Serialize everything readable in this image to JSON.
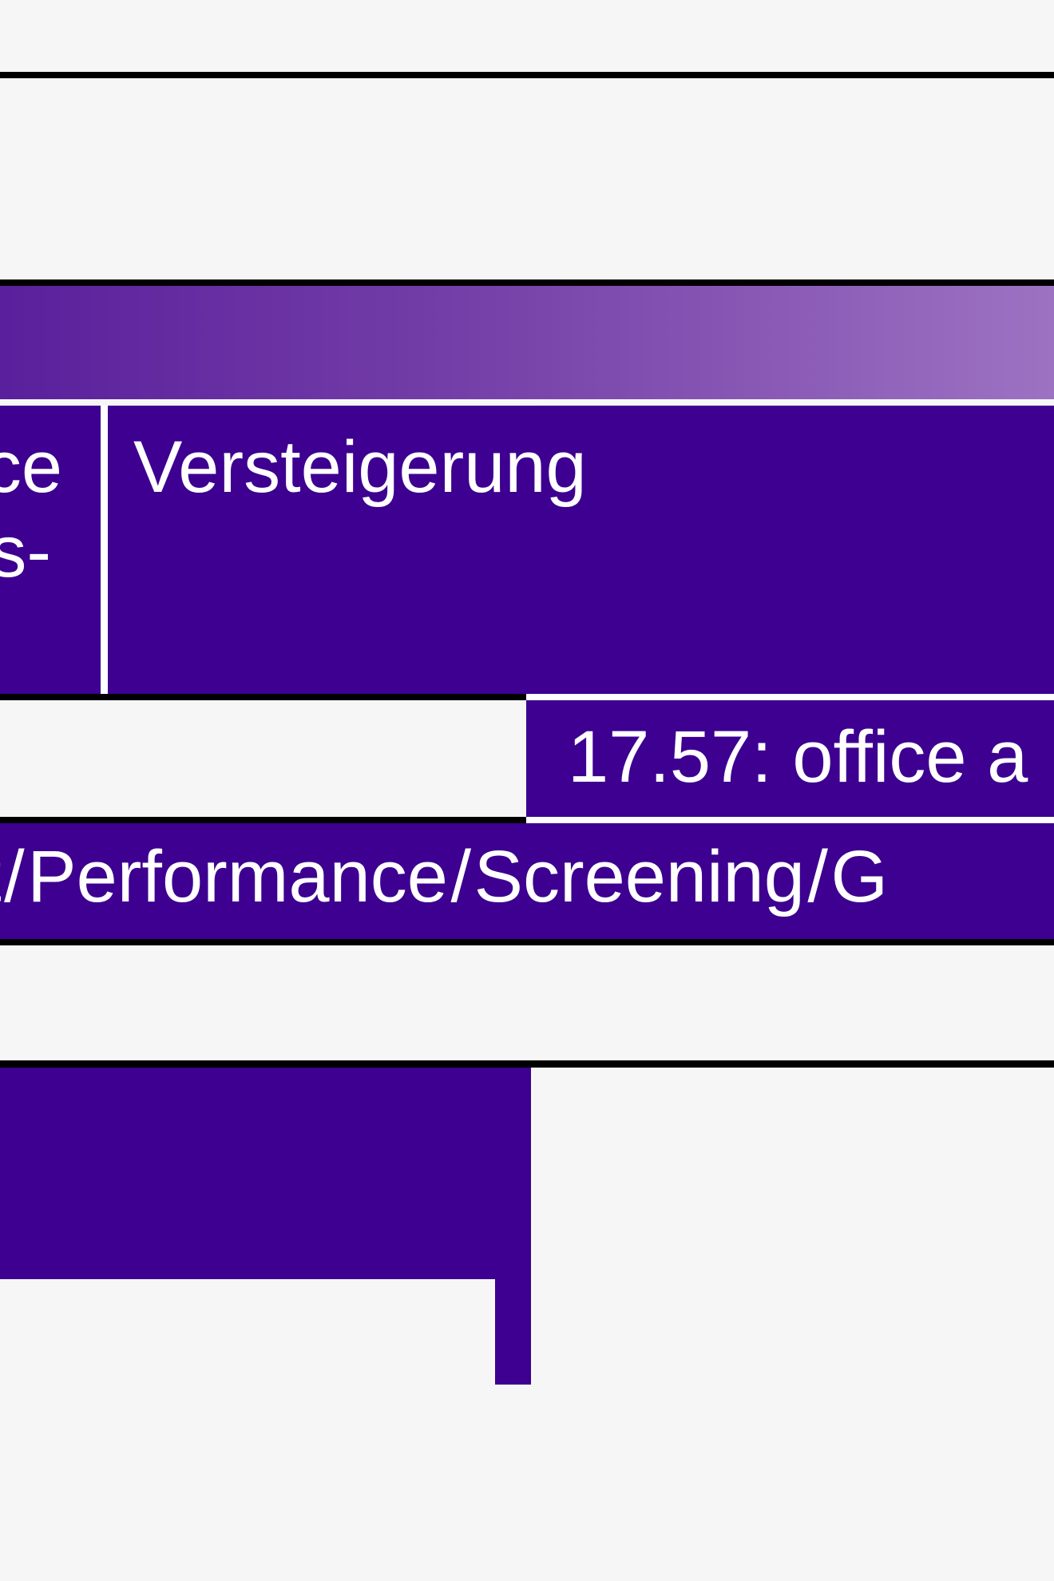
{
  "colors": {
    "background": "#f6f6f6",
    "purple": "#3d0090",
    "gradient_start": "#5a1f9c",
    "gradient_end": "#9d72c2",
    "rule": "#000000"
  },
  "row1": {
    "left_cell_lines": [
      "ce",
      "s-"
    ],
    "right_cell_title": "Versteigerung"
  },
  "row2": {
    "event_text": "17.57: office a"
  },
  "row3": {
    "category_text": "t / Performance / Screening / G"
  }
}
